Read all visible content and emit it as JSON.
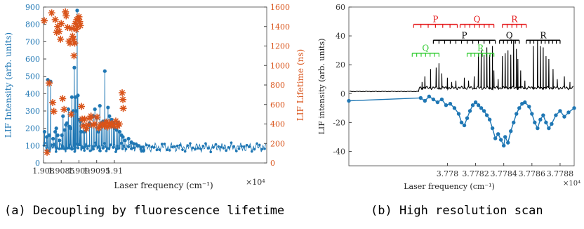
{
  "captions": {
    "a": "(a) Decoupling by fluorescence lifetime",
    "b": "(b) High resolution scan"
  },
  "colors": {
    "blue": "#1f77b4",
    "orange": "#d95319",
    "red": "#e41a1c",
    "green": "#33cc33",
    "black": "#000000"
  },
  "chart_data": [
    {
      "type": "line",
      "xlabel": "Laser frequency (cm⁻¹)",
      "x_multiplier": "×10⁴",
      "xlim": [
        19080,
        19143
      ],
      "xticks": [
        19080,
        19085,
        19090,
        19095,
        19100
      ],
      "xtick_labels": [
        "1.908",
        "1.9085",
        "1.909",
        "1.9095",
        "1.91"
      ],
      "y_left": {
        "label": "LIF Intensity (arb. units)",
        "lim": [
          0,
          900
        ],
        "ticks": [
          0,
          100,
          200,
          300,
          400,
          500,
          600,
          700,
          800,
          900
        ]
      },
      "y_right": {
        "label": "LIF Lifetime (ns)",
        "lim": [
          0,
          1600
        ],
        "ticks": [
          0,
          200,
          400,
          600,
          800,
          1000,
          1200,
          1400,
          1600
        ]
      },
      "series": [
        {
          "axis": "left",
          "style": "line-star",
          "color": "#1f77b4",
          "baseline": 90,
          "peaks": [
            [
              19080.3,
              180
            ],
            [
              19080.9,
              150
            ],
            [
              19081.2,
              480
            ],
            [
              19081.6,
              160
            ],
            [
              19082.0,
              470
            ],
            [
              19082.7,
              140
            ],
            [
              19083.3,
              180
            ],
            [
              19083.6,
              200
            ],
            [
              19084.0,
              160
            ],
            [
              19084.5,
              130
            ],
            [
              19085.2,
              160
            ],
            [
              19085.5,
              270
            ],
            [
              19085.9,
              190
            ],
            [
              19086.3,
              220
            ],
            [
              19086.6,
              230
            ],
            [
              19087.0,
              310
            ],
            [
              19087.3,
              210
            ],
            [
              19087.6,
              200
            ],
            [
              19088.0,
              380
            ],
            [
              19088.4,
              300
            ],
            [
              19088.7,
              550
            ],
            [
              19089.0,
              380
            ],
            [
              19089.3,
              300
            ],
            [
              19089.5,
              880
            ],
            [
              19089.7,
              390
            ],
            [
              19090.1,
              250
            ],
            [
              19090.4,
              240
            ],
            [
              19090.7,
              180
            ],
            [
              19091.2,
              220
            ],
            [
              19091.6,
              180
            ],
            [
              19092.2,
              200
            ],
            [
              19093.0,
              230
            ],
            [
              19093.6,
              220
            ],
            [
              19094.1,
              270
            ],
            [
              19094.5,
              310
            ],
            [
              19095.0,
              260
            ],
            [
              19095.5,
              180
            ],
            [
              19095.9,
              330
            ],
            [
              19096.4,
              230
            ],
            [
              19096.8,
              240
            ],
            [
              19097.3,
              530
            ],
            [
              19097.7,
              240
            ],
            [
              19098.2,
              320
            ],
            [
              19098.6,
              270
            ],
            [
              19099.2,
              250
            ],
            [
              19099.7,
              230
            ],
            [
              19100.1,
              200
            ],
            [
              19100.6,
              190
            ],
            [
              19101.0,
              230
            ],
            [
              19101.5,
              180
            ],
            [
              19102.0,
              160
            ],
            [
              19102.4,
              150
            ],
            [
              19103.0,
              130
            ],
            [
              19104.0,
              140
            ],
            [
              19104.8,
              120
            ],
            [
              19105.5,
              110
            ],
            [
              19106.5,
              100
            ],
            [
              19107.5,
              90
            ],
            [
              19108.2,
              70
            ]
          ]
        },
        {
          "axis": "right",
          "style": "asterisk",
          "color": "#d95319",
          "points": [
            [
              19080.2,
              1460
            ],
            [
              19081.0,
              110
            ],
            [
              19081.6,
              820
            ],
            [
              19082.3,
              1540
            ],
            [
              19082.6,
              620
            ],
            [
              19082.9,
              530
            ],
            [
              19083.3,
              1470
            ],
            [
              19083.7,
              1340
            ],
            [
              19084.0,
              1400
            ],
            [
              19084.4,
              1350
            ],
            [
              19084.8,
              1270
            ],
            [
              19085.0,
              1430
            ],
            [
              19085.4,
              660
            ],
            [
              19085.8,
              550
            ],
            [
              19086.2,
              1550
            ],
            [
              19086.4,
              1510
            ],
            [
              19086.8,
              1390
            ],
            [
              19087.2,
              1250
            ],
            [
              19087.5,
              1230
            ],
            [
              19087.8,
              500
            ],
            [
              19088.0,
              1380
            ],
            [
              19088.2,
              1300
            ],
            [
              19088.4,
              1270
            ],
            [
              19088.6,
              1100
            ],
            [
              19088.8,
              1230
            ],
            [
              19089.0,
              1430
            ],
            [
              19089.2,
              1370
            ],
            [
              19089.4,
              1470
            ],
            [
              19089.6,
              1400
            ],
            [
              19089.8,
              1480
            ],
            [
              19090.0,
              1500
            ],
            [
              19090.2,
              1450
            ],
            [
              19090.4,
              1410
            ],
            [
              19090.7,
              580
            ],
            [
              19090.9,
              450
            ],
            [
              19091.2,
              380
            ],
            [
              19091.6,
              450
            ],
            [
              19092.1,
              350
            ],
            [
              19092.6,
              390
            ],
            [
              19093.1,
              460
            ],
            [
              19093.4,
              480
            ],
            [
              19094.0,
              390
            ],
            [
              19094.5,
              400
            ],
            [
              19095.1,
              470
            ],
            [
              19095.6,
              360
            ],
            [
              19096.2,
              390
            ],
            [
              19096.7,
              400
            ],
            [
              19097.2,
              380
            ],
            [
              19097.7,
              420
            ],
            [
              19098.1,
              370
            ],
            [
              19098.6,
              410
            ],
            [
              19099.0,
              390
            ],
            [
              19099.4,
              400
            ],
            [
              19099.9,
              380
            ],
            [
              19100.4,
              430
            ],
            [
              19100.9,
              380
            ],
            [
              19101.4,
              400
            ],
            [
              19102.2,
              720
            ],
            [
              19102.4,
              650
            ],
            [
              19102.5,
              560
            ]
          ]
        }
      ]
    },
    {
      "type": "line",
      "xlabel": "Laser frequency (cm⁻¹)",
      "x_multiplier": "×10⁴",
      "ylabel": "LIF intensity (arb. units)",
      "xlim": [
        37773,
        37789
      ],
      "ylim": [
        -50,
        60
      ],
      "xticks": [
        37780,
        37782,
        37784,
        37786,
        37788
      ],
      "xtick_labels": [
        "3.778",
        "3.7782",
        "3.7784",
        "3.7786",
        "3.7788"
      ],
      "yticks": [
        -40,
        -20,
        0,
        20,
        40,
        60
      ],
      "series": [
        {
          "style": "line",
          "color": "#000000",
          "baseline": 4,
          "peaks": [
            [
              37778.2,
              8
            ],
            [
              37778.4,
              12
            ],
            [
              37778.8,
              17
            ],
            [
              37779.2,
              18
            ],
            [
              37779.4,
              21
            ],
            [
              37779.6,
              14
            ],
            [
              37780.0,
              11
            ],
            [
              37780.3,
              8
            ],
            [
              37780.6,
              9
            ],
            [
              37781.2,
              11
            ],
            [
              37781.5,
              9
            ],
            [
              37781.9,
              12
            ],
            [
              37782.2,
              28
            ],
            [
              37782.4,
              30
            ],
            [
              37782.6,
              27
            ],
            [
              37782.8,
              32
            ],
            [
              37783.0,
              27
            ],
            [
              37783.2,
              33
            ],
            [
              37783.3,
              16
            ],
            [
              37783.6,
              10
            ],
            [
              37783.9,
              26
            ],
            [
              37784.1,
              28
            ],
            [
              37784.3,
              30
            ],
            [
              37784.5,
              27
            ],
            [
              37784.7,
              37
            ],
            [
              37784.9,
              31
            ],
            [
              37785.0,
              24
            ],
            [
              37785.2,
              16
            ],
            [
              37785.5,
              9
            ],
            [
              37786.1,
              33
            ],
            [
              37786.4,
              35
            ],
            [
              37786.6,
              33
            ],
            [
              37786.8,
              32
            ],
            [
              37787.0,
              26
            ],
            [
              37787.2,
              24
            ],
            [
              37787.5,
              17
            ],
            [
              37787.8,
              10
            ],
            [
              37788.3,
              12
            ],
            [
              37788.7,
              8
            ]
          ]
        },
        {
          "style": "line-dot",
          "color": "#1f77b4",
          "points": [
            [
              37773,
              -5
            ],
            [
              37778.1,
              -3
            ],
            [
              37778.4,
              -5
            ],
            [
              37778.7,
              -2
            ],
            [
              37779.0,
              -4
            ],
            [
              37779.3,
              -6
            ],
            [
              37779.6,
              -4
            ],
            [
              37779.9,
              -8
            ],
            [
              37780.2,
              -7
            ],
            [
              37780.5,
              -10
            ],
            [
              37780.8,
              -14
            ],
            [
              37781.0,
              -20
            ],
            [
              37781.2,
              -22
            ],
            [
              37781.4,
              -17
            ],
            [
              37781.6,
              -12
            ],
            [
              37781.8,
              -8
            ],
            [
              37782.0,
              -6
            ],
            [
              37782.2,
              -8
            ],
            [
              37782.4,
              -10
            ],
            [
              37782.6,
              -12
            ],
            [
              37782.8,
              -15
            ],
            [
              37783.0,
              -18
            ],
            [
              37783.2,
              -24
            ],
            [
              37783.4,
              -31
            ],
            [
              37783.6,
              -28
            ],
            [
              37783.8,
              -32
            ],
            [
              37784.0,
              -36
            ],
            [
              37784.1,
              -30
            ],
            [
              37784.3,
              -34
            ],
            [
              37784.5,
              -26
            ],
            [
              37784.7,
              -20
            ],
            [
              37784.9,
              -14
            ],
            [
              37785.1,
              -10
            ],
            [
              37785.3,
              -7
            ],
            [
              37785.5,
              -6
            ],
            [
              37785.8,
              -9
            ],
            [
              37786.0,
              -14
            ],
            [
              37786.2,
              -20
            ],
            [
              37786.4,
              -24
            ],
            [
              37786.6,
              -18
            ],
            [
              37786.8,
              -15
            ],
            [
              37787.0,
              -20
            ],
            [
              37787.2,
              -24
            ],
            [
              37787.4,
              -21
            ],
            [
              37787.7,
              -15
            ],
            [
              37788.0,
              -12
            ],
            [
              37788.3,
              -16
            ],
            [
              37788.6,
              -13
            ],
            [
              37789.0,
              -10
            ]
          ]
        }
      ],
      "annotations": [
        {
          "label": "P",
          "color": "#e41a1c",
          "x0": 37777.6,
          "x1": 37780.7,
          "y": 48,
          "ticks": 7
        },
        {
          "label": "Q",
          "color": "#e41a1c",
          "x0": 37780.9,
          "x1": 37783.3,
          "y": 48,
          "ticks": 8
        },
        {
          "label": "R",
          "color": "#e41a1c",
          "x0": 37783.9,
          "x1": 37785.6,
          "y": 48,
          "ticks": 6
        },
        {
          "label": "P",
          "color": "#000000",
          "x0": 37779.0,
          "x1": 37783.4,
          "y": 37,
          "ticks": 12
        },
        {
          "label": "Q",
          "color": "#000000",
          "x0": 37783.7,
          "x1": 37785.1,
          "y": 37,
          "ticks": 6
        },
        {
          "label": "R",
          "color": "#000000",
          "x0": 37785.6,
          "x1": 37788.0,
          "y": 37,
          "ticks": 10
        },
        {
          "label": "Q",
          "color": "#33cc33",
          "x0": 37777.5,
          "x1": 37779.4,
          "y": 28,
          "ticks": 7
        },
        {
          "label": "R",
          "color": "#33cc33",
          "x0": 37781.4,
          "x1": 37783.3,
          "y": 28,
          "ticks": 8
        }
      ]
    }
  ]
}
